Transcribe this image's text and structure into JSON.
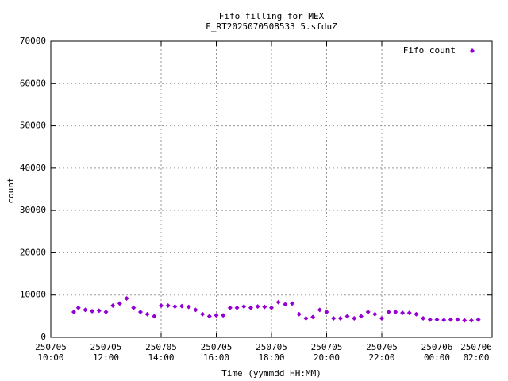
{
  "chart_data": {
    "type": "scatter",
    "title": "Fifo filling for MEX",
    "subtitle": "E_RT2025070508533 5.sfduZ",
    "xlabel": "Time (yymmdd HH:MM)",
    "ylabel": "count",
    "xlim": [
      "250705 10:00",
      "250706 02:00"
    ],
    "xticks": [
      {
        "value": "250705 10:00",
        "label": "250705\n10:00"
      },
      {
        "value": "250705 12:00",
        "label": "250705\n12:00"
      },
      {
        "value": "250705 14:00",
        "label": "250705\n14:00"
      },
      {
        "value": "250705 16:00",
        "label": "250705\n16:00"
      },
      {
        "value": "250705 18:00",
        "label": "250705\n18:00"
      },
      {
        "value": "250705 20:00",
        "label": "250705\n20:00"
      },
      {
        "value": "250705 22:00",
        "label": "250705\n22:00"
      },
      {
        "value": "250706 00:00",
        "label": "250706\n00:00"
      },
      {
        "value": "250706 02:00",
        "label": "250706\n02:00"
      }
    ],
    "ylim": [
      0,
      70000
    ],
    "yticks": [
      0,
      10000,
      20000,
      30000,
      40000,
      50000,
      60000,
      70000
    ],
    "grid": true,
    "legend": "top-right",
    "series": [
      {
        "name": "Fifo count",
        "color": "#9400d3",
        "x": [
          "250705 10:50",
          "250705 11:00",
          "250705 11:15",
          "250705 11:30",
          "250705 11:45",
          "250705 12:00",
          "250705 12:15",
          "250705 12:30",
          "250705 12:45",
          "250705 13:00",
          "250705 13:15",
          "250705 13:30",
          "250705 13:45",
          "250705 14:00",
          "250705 14:15",
          "250705 14:30",
          "250705 14:45",
          "250705 15:00",
          "250705 15:15",
          "250705 15:30",
          "250705 15:45",
          "250705 16:00",
          "250705 16:15",
          "250705 16:30",
          "250705 16:45",
          "250705 17:00",
          "250705 17:15",
          "250705 17:30",
          "250705 17:45",
          "250705 18:00",
          "250705 18:15",
          "250705 18:30",
          "250705 18:45",
          "250705 19:00",
          "250705 19:15",
          "250705 19:30",
          "250705 19:45",
          "250705 20:00",
          "250705 20:15",
          "250705 20:30",
          "250705 20:45",
          "250705 21:00",
          "250705 21:15",
          "250705 21:30",
          "250705 21:45",
          "250705 22:00",
          "250705 22:15",
          "250705 22:30",
          "250705 22:45",
          "250705 23:00",
          "250705 23:15",
          "250705 23:30",
          "250705 23:45",
          "250706 00:00",
          "250706 00:15",
          "250706 00:30",
          "250706 00:45",
          "250706 01:00",
          "250706 01:15",
          "250706 01:30"
        ],
        "values": [
          6000,
          7000,
          6500,
          6200,
          6300,
          6000,
          7500,
          8000,
          9200,
          7000,
          6000,
          5500,
          5000,
          7500,
          7500,
          7300,
          7400,
          7200,
          6500,
          5500,
          5000,
          5200,
          5200,
          7000,
          7000,
          7300,
          7000,
          7300,
          7200,
          7000,
          8300,
          7800,
          8000,
          5500,
          4500,
          4800,
          6500,
          6000,
          4500,
          4500,
          5000,
          4500,
          5000,
          6000,
          5500,
          4500,
          6000,
          6000,
          5800,
          5800,
          5500,
          4500,
          4200,
          4200,
          4100,
          4200,
          4200,
          4000,
          4000,
          4200
        ]
      }
    ]
  }
}
